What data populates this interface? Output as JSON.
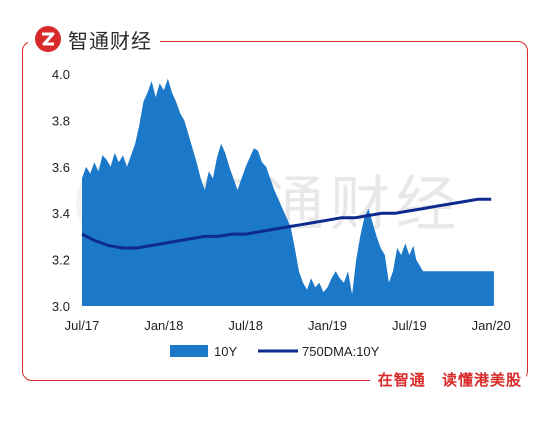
{
  "brand": {
    "name": "智通财经",
    "footer_left": "在智通",
    "footer_right": "读懂港美股"
  },
  "watermark": "智通财经",
  "colors": {
    "area": "#1c78c8",
    "line": "#0d2a8f",
    "frame": "#d92a2a"
  },
  "chart_data": {
    "type": "area",
    "ylim": [
      3.0,
      4.0
    ],
    "yticks": [
      "4.0",
      "3.8",
      "3.6",
      "3.4",
      "3.2",
      "3.0"
    ],
    "yticks_values": [
      4.0,
      3.8,
      3.6,
      3.4,
      3.2,
      3.0
    ],
    "xticks": [
      "Jul/17",
      "Jan/18",
      "Jul/18",
      "Jan/19",
      "Jul/19",
      "Jan/20"
    ],
    "xticks_values": [
      0,
      6,
      12,
      18,
      24,
      30
    ],
    "xlim": [
      0,
      30.5
    ],
    "series": [
      {
        "name": "10Y",
        "type": "area",
        "x": [
          0,
          0.3,
          0.6,
          0.9,
          1.2,
          1.5,
          1.8,
          2.1,
          2.4,
          2.7,
          3.0,
          3.3,
          3.6,
          3.9,
          4.2,
          4.5,
          4.8,
          5.1,
          5.4,
          5.7,
          6.0,
          6.3,
          6.6,
          6.9,
          7.2,
          7.5,
          7.8,
          8.1,
          8.4,
          8.7,
          9.0,
          9.3,
          9.6,
          9.9,
          10.2,
          10.5,
          10.8,
          11.1,
          11.4,
          11.7,
          12.0,
          12.3,
          12.6,
          12.9,
          13.2,
          13.5,
          13.8,
          14.1,
          14.4,
          14.7,
          15.0,
          15.3,
          15.6,
          15.9,
          16.2,
          16.5,
          16.8,
          17.1,
          17.4,
          17.7,
          18.0,
          18.3,
          18.6,
          18.9,
          19.2,
          19.5,
          19.8,
          20.1,
          20.4,
          20.7,
          21.0,
          21.3,
          21.6,
          21.9,
          22.2,
          22.5,
          22.8,
          23.1,
          23.4,
          23.7,
          24.0,
          24.3,
          24.5,
          25.0,
          26.0,
          27.0,
          28.0,
          29.0,
          30.0,
          30.2
        ],
        "values": [
          3.55,
          3.6,
          3.57,
          3.62,
          3.58,
          3.65,
          3.63,
          3.6,
          3.66,
          3.62,
          3.65,
          3.6,
          3.65,
          3.7,
          3.78,
          3.88,
          3.92,
          3.97,
          3.9,
          3.96,
          3.93,
          3.98,
          3.92,
          3.88,
          3.83,
          3.8,
          3.74,
          3.68,
          3.62,
          3.55,
          3.5,
          3.58,
          3.55,
          3.64,
          3.7,
          3.66,
          3.6,
          3.55,
          3.5,
          3.55,
          3.6,
          3.64,
          3.68,
          3.67,
          3.62,
          3.6,
          3.55,
          3.5,
          3.46,
          3.42,
          3.38,
          3.34,
          3.25,
          3.15,
          3.1,
          3.07,
          3.12,
          3.08,
          3.1,
          3.06,
          3.08,
          3.12,
          3.15,
          3.12,
          3.1,
          3.15,
          3.05,
          3.2,
          3.3,
          3.38,
          3.42,
          3.36,
          3.3,
          3.25,
          3.22,
          3.1,
          3.15,
          3.25,
          3.22,
          3.27,
          3.22,
          3.26,
          3.2,
          3.15,
          3.15,
          3.15,
          3.15,
          3.15,
          3.15,
          3.15
        ]
      },
      {
        "name": "750DMA:10Y",
        "type": "line",
        "x": [
          0,
          1,
          2,
          3,
          4,
          5,
          6,
          7,
          8,
          9,
          10,
          11,
          12,
          13,
          14,
          15,
          16,
          17,
          18,
          19,
          20,
          21,
          22,
          23,
          24,
          25,
          26,
          27,
          28,
          29,
          30
        ],
        "values": [
          3.31,
          3.28,
          3.26,
          3.25,
          3.25,
          3.26,
          3.27,
          3.28,
          3.29,
          3.3,
          3.3,
          3.31,
          3.31,
          3.32,
          3.33,
          3.34,
          3.35,
          3.36,
          3.37,
          3.38,
          3.38,
          3.39,
          3.4,
          3.4,
          3.41,
          3.42,
          3.43,
          3.44,
          3.45,
          3.46,
          3.46
        ]
      }
    ],
    "legend": {
      "placement": "bottom",
      "entries": [
        "10Y",
        "750DMA:10Y"
      ]
    }
  }
}
